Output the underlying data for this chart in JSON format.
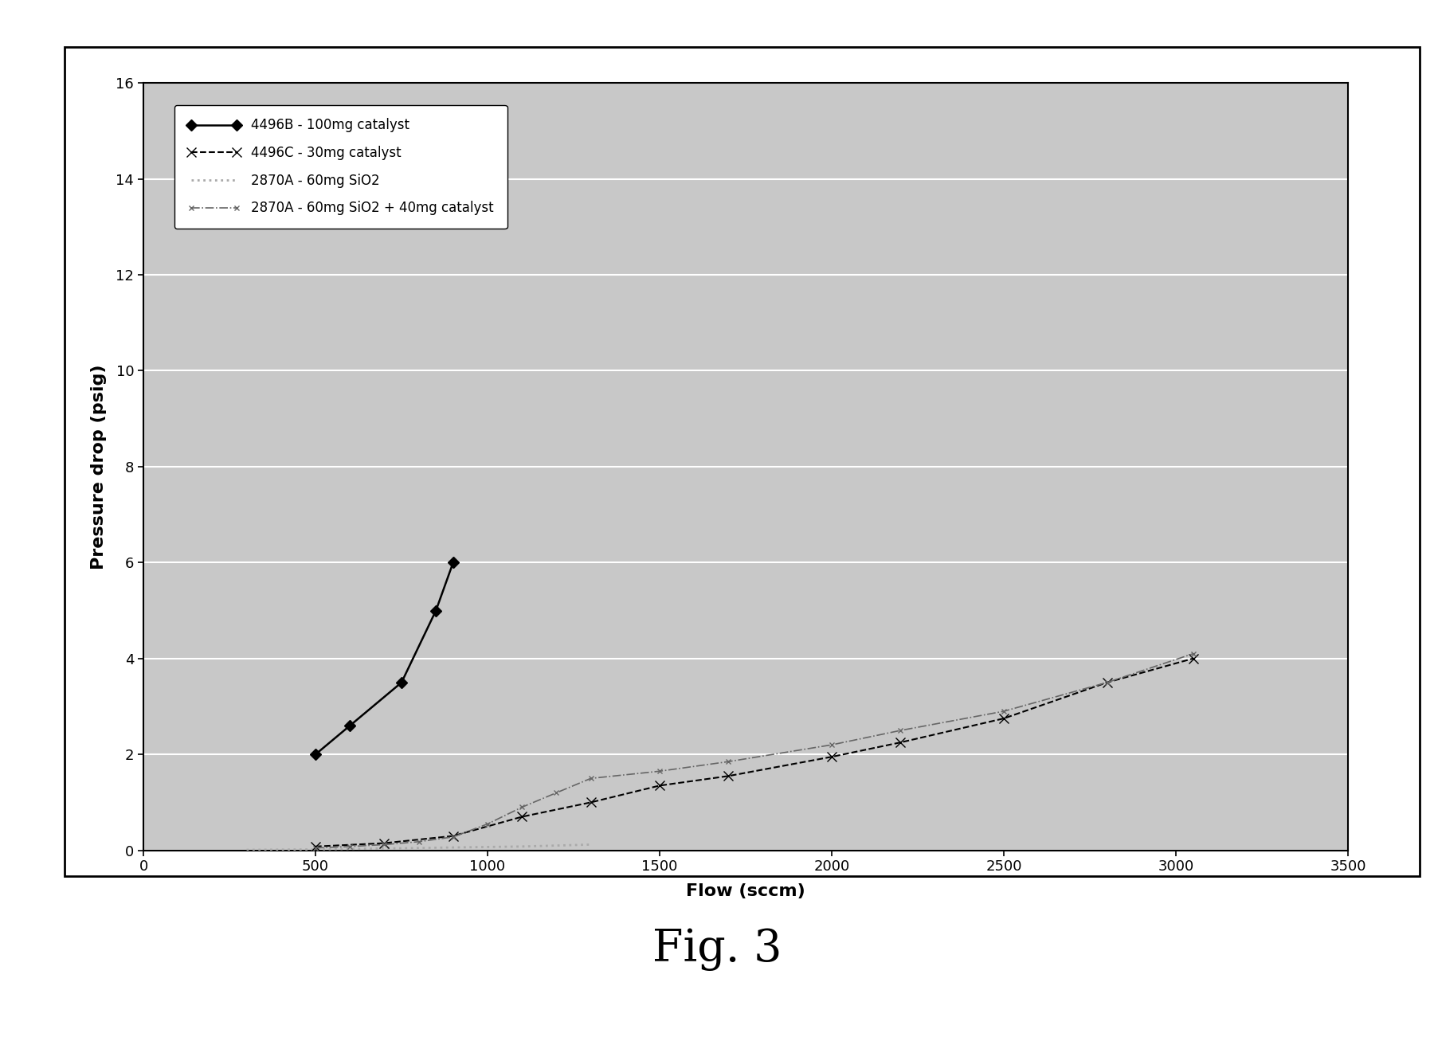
{
  "series1": {
    "label": "4496B - 100mg catalyst",
    "x": [
      500,
      600,
      750,
      850,
      900
    ],
    "y": [
      2.0,
      2.6,
      3.5,
      5.0,
      6.0
    ],
    "color": "#000000",
    "linestyle": "-",
    "marker": "D",
    "markersize": 7,
    "linewidth": 1.8
  },
  "series2": {
    "label": "4496C - 30mg catalyst",
    "x": [
      500,
      700,
      900,
      1100,
      1300,
      1500,
      1700,
      2000,
      2200,
      2500,
      2800,
      3050
    ],
    "y": [
      0.08,
      0.15,
      0.3,
      0.7,
      1.0,
      1.35,
      1.55,
      1.95,
      2.25,
      2.75,
      3.5,
      4.0
    ],
    "color": "#000000",
    "linestyle": "--",
    "marker": "x",
    "markersize": 8,
    "linewidth": 1.5
  },
  "series3": {
    "label": "2870A - 60mg SiO2",
    "x": [
      300,
      500,
      700,
      900,
      1100,
      1300
    ],
    "y": [
      0.01,
      0.02,
      0.04,
      0.06,
      0.08,
      0.12
    ],
    "color": "#aaaaaa",
    "linestyle": ":",
    "marker": "",
    "markersize": 0,
    "linewidth": 2.0
  },
  "series4": {
    "label": "2870A - 60mg SiO2 + 40mg catalyst",
    "x": [
      500,
      600,
      700,
      800,
      900,
      1000,
      1100,
      1200,
      1300,
      1500,
      1700,
      2000,
      2200,
      2500,
      2800,
      3050
    ],
    "y": [
      0.05,
      0.08,
      0.12,
      0.18,
      0.28,
      0.55,
      0.9,
      1.2,
      1.5,
      1.65,
      1.85,
      2.2,
      2.5,
      2.9,
      3.5,
      4.1
    ],
    "color": "#666666",
    "linestyle": "-.",
    "marker": "x",
    "markersize": 5,
    "linewidth": 1.2
  },
  "xlabel": "Flow (sccm)",
  "ylabel": "Pressure drop (psig)",
  "xlim": [
    0,
    3500
  ],
  "ylim": [
    0,
    16
  ],
  "xticks": [
    0,
    500,
    1000,
    1500,
    2000,
    2500,
    3000,
    3500
  ],
  "yticks": [
    0,
    2,
    4,
    6,
    8,
    10,
    12,
    14,
    16
  ],
  "fig_caption": "Fig. 3",
  "plot_bg": "#c8c8c8",
  "outer_box_bg": "#ffffff",
  "grid_color": "#ffffff",
  "figure_bg": "#ffffff"
}
